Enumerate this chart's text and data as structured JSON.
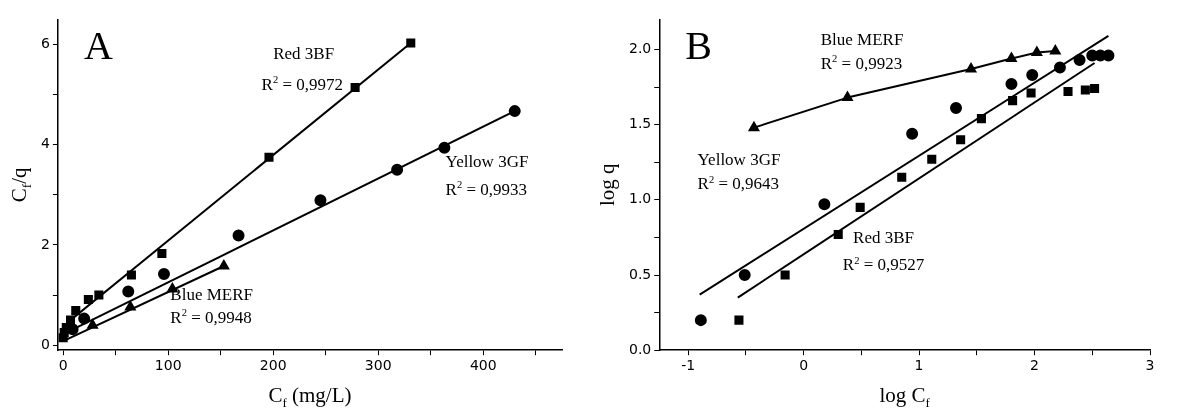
{
  "chart_data": [
    {
      "type": "scatter",
      "title": "A",
      "xlabel": "C$_{f}$ (mg/L)",
      "ylabel": "C$_{f}$/q",
      "xlim": [
        -5,
        475
      ],
      "xticks": [
        0,
        {
          "value": 50,
          "label": null
        },
        100,
        {
          "value": 150,
          "label": null
        },
        200,
        {
          "value": 250,
          "label": null
        },
        300,
        {
          "value": 350,
          "label": null
        },
        400,
        {
          "value": 450,
          "label": null
        }
      ],
      "ylim": [
        -0.1,
        6.5
      ],
      "yticks": [
        0,
        {
          "value": 1,
          "label": null
        },
        2,
        {
          "value": 3,
          "label": null
        },
        4,
        {
          "value": 5,
          "label": null
        },
        6
      ],
      "grid": false,
      "legend": false,
      "series": [
        {
          "type": "scatter",
          "marker": "square",
          "color": "#000000",
          "x": [
            0,
            1,
            3,
            7,
            12,
            24,
            34,
            65,
            94,
            196,
            278,
            331
          ],
          "values": [
            0.15,
            0.25,
            0.35,
            0.5,
            0.69,
            0.91,
            1.0,
            1.4,
            1.83,
            3.75,
            5.14,
            6.03
          ]
        },
        {
          "type": "scatter",
          "marker": "circle",
          "color": "#000000",
          "x": [
            9,
            20,
            62,
            96,
            167,
            245,
            318,
            363,
            430
          ],
          "values": [
            0.32,
            0.53,
            1.07,
            1.42,
            2.19,
            2.89,
            3.5,
            3.94,
            4.67
          ]
        },
        {
          "type": "scatter",
          "marker": "triangle",
          "color": "#000000",
          "x": [
            28,
            64,
            104,
            153
          ],
          "values": [
            0.4,
            0.76,
            1.12,
            1.58
          ]
        },
        {
          "type": "line",
          "color": "#000000",
          "x": [
            7,
            331
          ],
          "values": [
            0.5,
            6.03
          ]
        },
        {
          "type": "line",
          "color": "#000000",
          "x": [
            3,
            430
          ],
          "values": [
            0.25,
            4.67
          ]
        },
        {
          "type": "line",
          "color": "#000000",
          "x": [
            0,
            153
          ],
          "values": [
            0.08,
            1.58
          ]
        }
      ],
      "annotations": [
        "Red 3BF",
        "R$^{2}$ = 0,9972",
        "Yellow 3GF",
        "R$^{2}$ = 0,9933",
        "Blue MERF",
        "R$^{2}$ = 0,9948"
      ]
    },
    {
      "type": "scatter",
      "title": "B",
      "xlabel": "log C$_{f}$",
      "ylabel": "log q",
      "xlim": [
        -1.25,
        3
      ],
      "xticks": [
        -1,
        {
          "value": -0.5,
          "label": null
        },
        0,
        {
          "value": 0.5,
          "label": null
        },
        1,
        {
          "value": 1.5,
          "label": null
        },
        2,
        {
          "value": 2.5,
          "label": null
        },
        3
      ],
      "ylim": [
        0,
        2.2
      ],
      "yticks": [
        {
          "value": 0,
          "label": "0.0"
        },
        {
          "value": 0.25,
          "label": null
        },
        {
          "value": 0.5,
          "label": "0.5"
        },
        {
          "value": 0.75,
          "label": null
        },
        {
          "value": 1,
          "label": "1.0"
        },
        {
          "value": 1.25,
          "label": null
        },
        {
          "value": 1.5,
          "label": "1.5"
        },
        {
          "value": 1.75,
          "label": null
        },
        {
          "value": 2,
          "label": "2.0"
        }
      ],
      "grid": false,
      "legend": false,
      "series": [
        {
          "type": "scatter",
          "marker": "circle",
          "color": "#000000",
          "x": [
            -0.89,
            -0.51,
            0.18,
            0.94,
            1.32,
            1.8,
            1.98,
            2.22,
            2.39,
            2.5,
            2.57,
            2.64
          ],
          "values": [
            0.2,
            0.5,
            0.97,
            1.44,
            1.61,
            1.77,
            1.83,
            1.88,
            1.93,
            1.96,
            1.96,
            1.96
          ]
        },
        {
          "type": "scatter",
          "marker": "square",
          "color": "#000000",
          "x": [
            -0.56,
            -0.16,
            0.3,
            0.49,
            0.85,
            1.11,
            1.36,
            1.54,
            1.81,
            1.97,
            2.29,
            2.44,
            2.52
          ],
          "values": [
            0.2,
            0.5,
            0.77,
            0.95,
            1.15,
            1.27,
            1.4,
            1.54,
            1.66,
            1.71,
            1.72,
            1.73,
            1.74
          ]
        },
        {
          "type": "line",
          "marker": "triangle",
          "color": "#000000",
          "x": [
            -0.43,
            0.38,
            1.45,
            1.8,
            2.02,
            2.18
          ],
          "values": [
            1.48,
            1.68,
            1.87,
            1.94,
            1.98,
            1.99
          ]
        },
        {
          "type": "line",
          "color": "#000000",
          "x": [
            -0.9,
            2.64
          ],
          "values": [
            0.37,
            2.09
          ]
        },
        {
          "type": "line",
          "color": "#000000",
          "x": [
            -0.57,
            2.52
          ],
          "values": [
            0.35,
            1.91
          ]
        }
      ],
      "annotations": [
        "Blue MERF",
        "R$^{2}$ = 0,9923",
        "Yellow 3GF",
        "R$^{2}$ = 0,9643",
        "Red 3BF",
        "R$^{2}$ = 0,9527"
      ]
    }
  ]
}
